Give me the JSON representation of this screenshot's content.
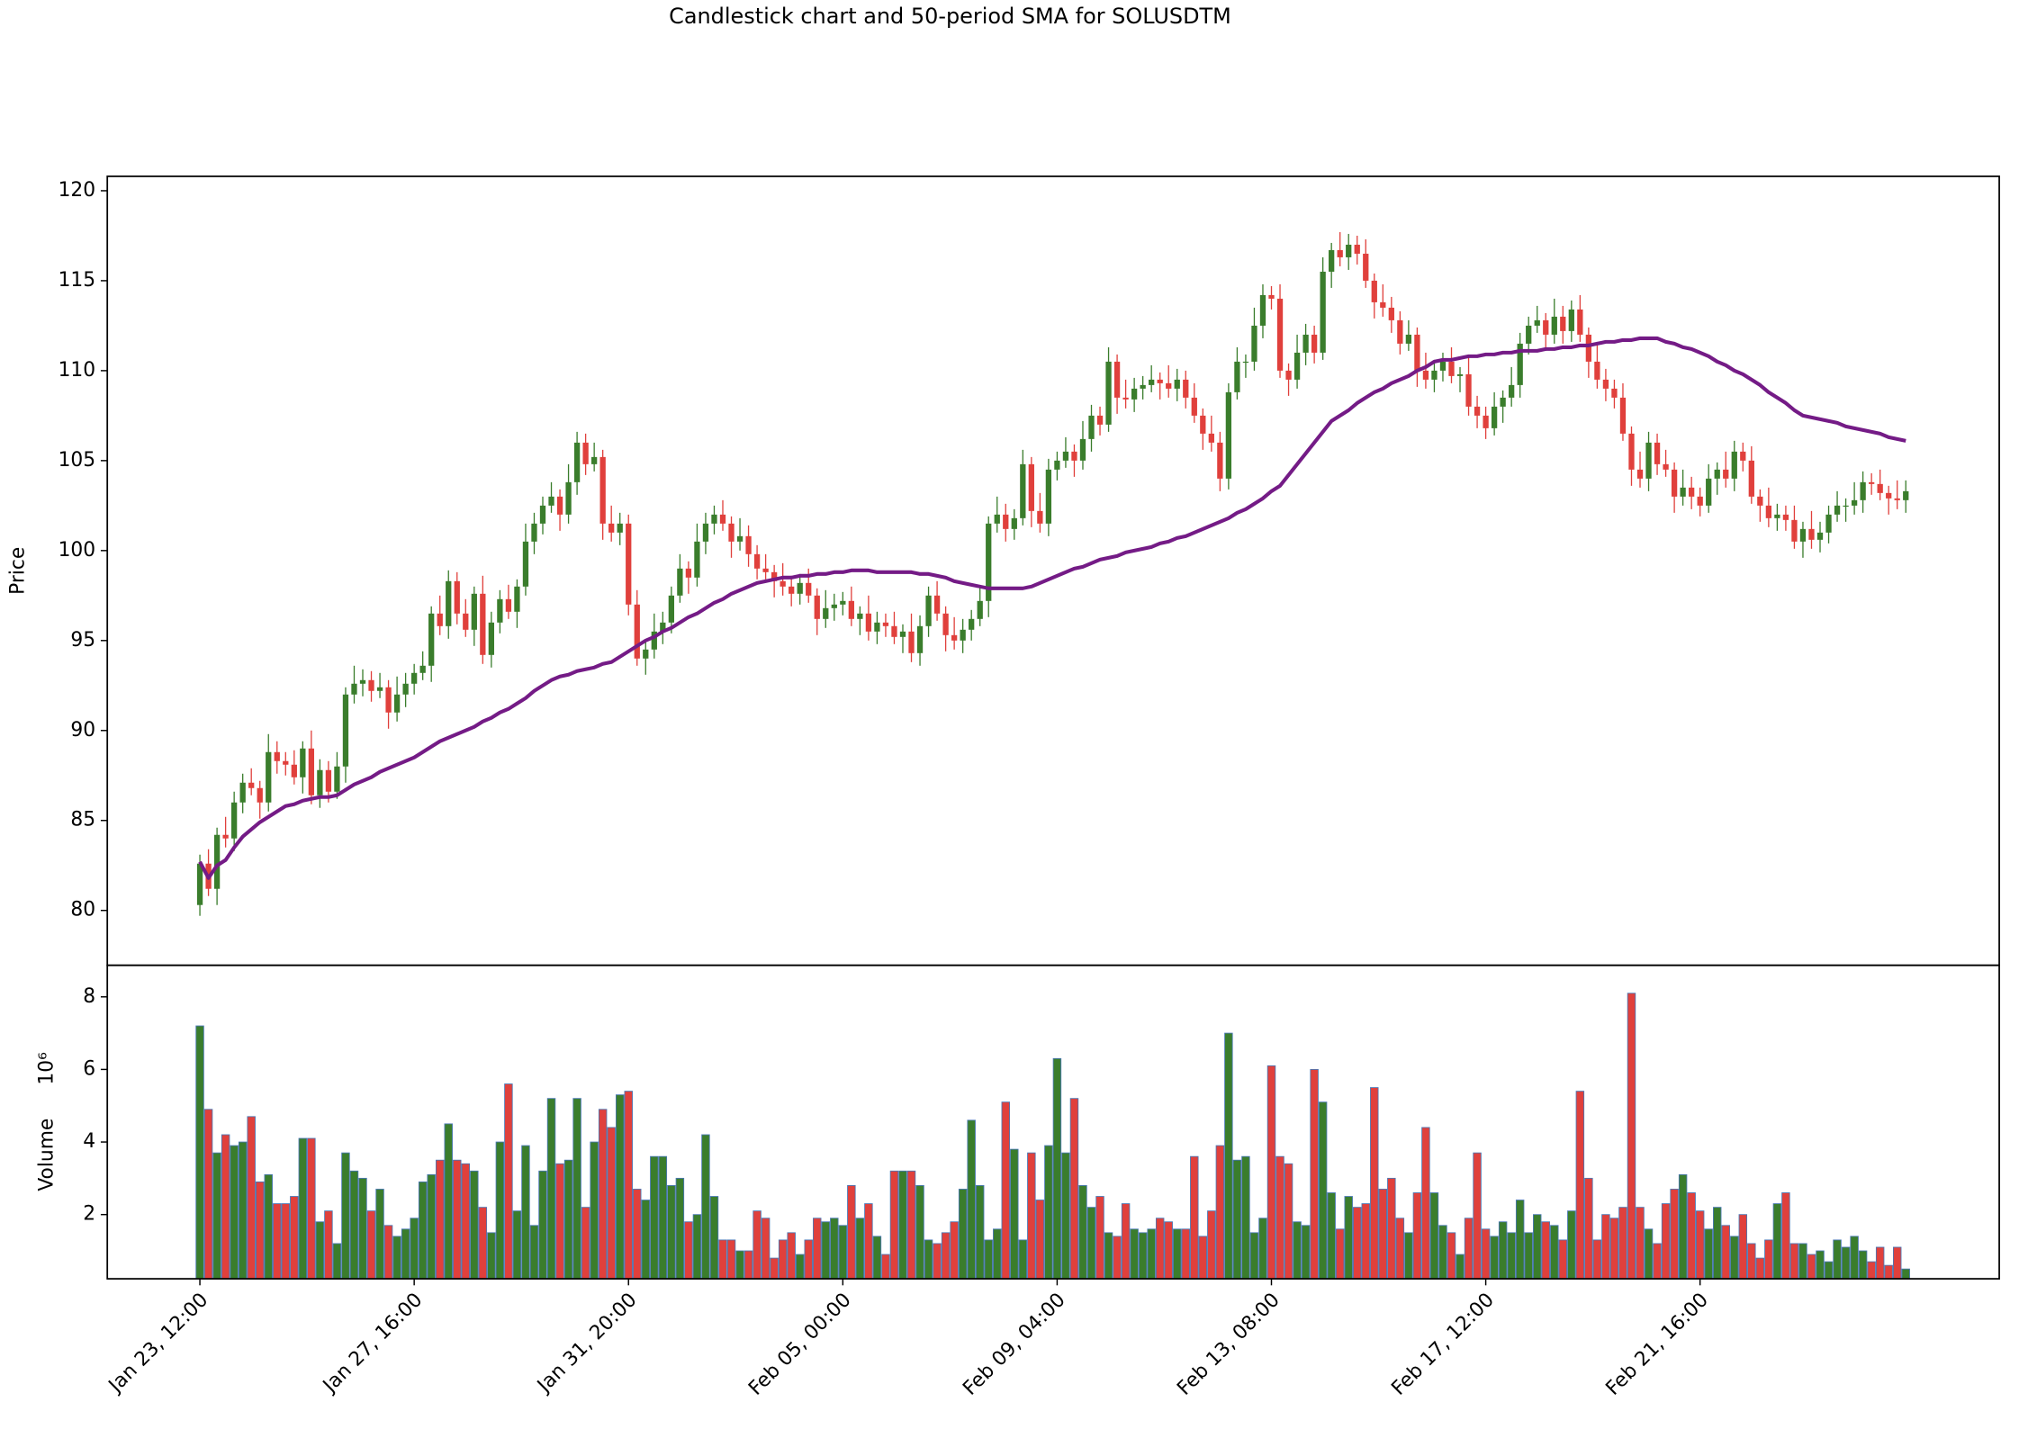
{
  "chart_data": {
    "type": "candlestick",
    "title": "Candlestick chart and 50-period SMA for SOLUSDTM",
    "ylabel": "Price",
    "up_color": "#3a7d2c",
    "down_color": "#e0403c",
    "edge_color": "#4a78b5",
    "xlim": [
      -10.8,
      209.9
    ],
    "xticks": [
      {
        "value": 0,
        "label": "Jan 23, 12:00"
      },
      {
        "value": 25,
        "label": "Jan 27, 16:00"
      },
      {
        "value": 50,
        "label": "Jan 31, 20:00"
      },
      {
        "value": 75,
        "label": "Feb 05, 00:00"
      },
      {
        "value": 100,
        "label": "Feb 09, 04:00"
      },
      {
        "value": 125,
        "label": "Feb 13, 08:00"
      },
      {
        "value": 150,
        "label": "Feb 17, 12:00"
      },
      {
        "value": 175,
        "label": "Feb 21, 16:00"
      }
    ],
    "ylim": [
      76.95,
      120.8
    ],
    "yticks": [
      80,
      85,
      90,
      95,
      100,
      105,
      110,
      115,
      120
    ],
    "open": [
      80.3,
      82.6,
      81.2,
      84.2,
      84.0,
      86.0,
      87.1,
      86.8,
      86.0,
      88.8,
      88.3,
      88.1,
      87.4,
      89.0,
      86.4,
      87.8,
      86.6,
      88.0,
      92.0,
      92.6,
      92.8,
      92.2,
      92.4,
      91.0,
      92.0,
      92.6,
      93.2,
      93.6,
      96.5,
      95.8,
      98.3,
      96.5,
      95.6,
      97.6,
      94.2,
      96.0,
      97.3,
      96.6,
      98.0,
      100.5,
      101.5,
      102.5,
      103.0,
      102.0,
      103.8,
      106.0,
      104.8,
      105.2,
      101.5,
      101.0,
      101.5,
      97.0,
      94.0,
      94.5,
      95.5,
      96.0,
      97.5,
      99.0,
      98.5,
      100.5,
      101.5,
      102.0,
      101.5,
      100.5,
      100.8,
      99.8,
      99.0,
      98.8,
      98.3,
      98.0,
      97.6,
      98.2,
      97.5,
      96.2,
      96.8,
      97.0,
      97.2,
      96.2,
      96.5,
      95.5,
      96.0,
      95.8,
      95.2,
      95.5,
      94.3,
      95.8,
      97.5,
      96.5,
      95.3,
      95.0,
      95.6,
      96.2,
      97.2,
      101.5,
      102.0,
      101.2,
      101.8,
      104.8,
      102.2,
      101.5,
      104.5,
      105.0,
      105.5,
      105.0,
      106.2,
      107.5,
      107.0,
      110.5,
      108.5,
      108.4,
      109.0,
      109.2,
      109.5,
      109.3,
      109.0,
      109.5,
      108.5,
      107.5,
      106.5,
      106.0,
      104.0,
      108.8,
      110.5,
      110.5,
      112.5,
      114.2,
      114.0,
      110.0,
      109.5,
      111.0,
      112.0,
      111.0,
      115.5,
      116.7,
      116.3,
      117.0,
      116.5,
      115.0,
      113.8,
      113.5,
      112.8,
      111.5,
      112.0,
      110.0,
      109.5,
      110.0,
      110.5,
      109.7,
      109.8,
      108.0,
      107.5,
      106.8,
      108.0,
      108.5,
      109.2,
      111.5,
      112.5,
      112.8,
      112.0,
      113.0,
      112.2,
      113.4,
      112.0,
      110.5,
      109.5,
      109.0,
      108.5,
      106.5,
      104.5,
      104.0,
      106.0,
      104.8,
      104.5,
      103.0,
      103.5,
      103.0,
      102.5,
      104.0,
      104.5,
      104.0,
      105.5,
      105.0,
      103.0,
      102.5,
      101.8,
      102.0,
      101.7,
      100.5,
      101.2,
      100.6,
      101.0,
      102.0,
      102.5,
      102.5,
      102.8,
      103.8,
      103.7,
      103.2,
      102.9,
      102.8
    ],
    "high": [
      83.1,
      83.4,
      84.6,
      85.2,
      86.6,
      87.6,
      87.9,
      87.2,
      89.8,
      89.4,
      88.8,
      88.9,
      89.4,
      90.0,
      88.4,
      88.3,
      88.8,
      92.4,
      93.6,
      93.4,
      93.3,
      93.2,
      92.8,
      93.0,
      93.2,
      93.7,
      94.4,
      96.9,
      97.5,
      98.9,
      98.8,
      97.3,
      98.0,
      98.6,
      96.6,
      97.8,
      98.1,
      98.4,
      101.5,
      102.1,
      103.0,
      103.8,
      103.4,
      104.8,
      106.6,
      106.5,
      106.0,
      105.6,
      102.5,
      102.1,
      102.0,
      97.8,
      94.9,
      96.5,
      96.6,
      98.0,
      99.8,
      99.4,
      101.5,
      102.1,
      102.5,
      102.8,
      101.9,
      101.8,
      101.4,
      100.3,
      99.8,
      99.2,
      99.3,
      98.6,
      98.7,
      99.0,
      97.9,
      97.8,
      97.6,
      97.7,
      98.0,
      96.9,
      97.5,
      96.6,
      96.5,
      96.6,
      95.9,
      96.5,
      96.4,
      98.0,
      98.3,
      96.9,
      96.3,
      96.2,
      96.7,
      98.0,
      101.9,
      103.0,
      102.6,
      102.3,
      105.6,
      105.2,
      103.2,
      105.1,
      105.5,
      106.3,
      105.9,
      107.2,
      108.1,
      108.0,
      111.3,
      110.9,
      109.5,
      109.6,
      109.7,
      110.3,
      109.9,
      110.3,
      110.1,
      110.0,
      109.3,
      107.9,
      107.5,
      106.6,
      109.3,
      111.3,
      110.9,
      113.5,
      114.8,
      114.7,
      114.8,
      110.4,
      112.0,
      112.6,
      112.5,
      116.3,
      117.1,
      117.7,
      117.6,
      117.5,
      117.3,
      115.4,
      114.8,
      114.1,
      113.3,
      112.8,
      112.4,
      111.0,
      110.6,
      111.0,
      111.3,
      110.2,
      110.8,
      108.6,
      108.0,
      108.8,
      108.9,
      110.2,
      112.1,
      113.0,
      113.6,
      113.2,
      114.0,
      113.6,
      113.9,
      114.2,
      112.4,
      111.5,
      110.1,
      109.5,
      109.3,
      106.9,
      105.5,
      106.6,
      106.5,
      105.6,
      104.9,
      104.5,
      104.1,
      103.5,
      104.8,
      104.9,
      105.5,
      106.1,
      106.0,
      105.8,
      103.4,
      103.5,
      102.6,
      102.5,
      102.5,
      101.6,
      102.2,
      101.6,
      102.5,
      103.3,
      102.9,
      103.8,
      104.4,
      104.3,
      104.5,
      103.6,
      103.9,
      103.9
    ],
    "low": [
      79.7,
      80.8,
      80.3,
      83.5,
      83.3,
      85.4,
      86.4,
      85.1,
      85.5,
      87.6,
      87.5,
      87.0,
      86.5,
      85.9,
      85.7,
      86.0,
      86.2,
      87.1,
      91.5,
      91.9,
      91.6,
      91.8,
      90.1,
      90.5,
      91.3,
      92.0,
      92.8,
      92.7,
      95.3,
      95.1,
      95.9,
      95.2,
      94.7,
      93.7,
      93.5,
      95.4,
      96.2,
      95.7,
      97.5,
      99.8,
      100.9,
      102.1,
      101.1,
      101.5,
      103.1,
      104.2,
      104.4,
      100.6,
      100.5,
      100.3,
      96.4,
      93.6,
      93.1,
      94.0,
      94.8,
      95.4,
      97.1,
      97.6,
      98.0,
      99.8,
      100.9,
      101.1,
      99.6,
      100.0,
      99.1,
      98.4,
      98.4,
      97.4,
      97.5,
      96.9,
      97.0,
      97.1,
      95.3,
      95.7,
      96.1,
      96.4,
      95.8,
      95.3,
      95.0,
      94.8,
      95.2,
      94.8,
      94.3,
      93.8,
      93.6,
      95.2,
      96.1,
      94.4,
      94.5,
      94.3,
      95.0,
      95.8,
      96.3,
      101.0,
      100.5,
      100.6,
      101.4,
      101.3,
      101.0,
      100.8,
      103.9,
      104.6,
      104.1,
      104.5,
      105.5,
      106.4,
      106.6,
      107.6,
      107.9,
      107.7,
      108.4,
      108.8,
      108.4,
      108.5,
      108.3,
      107.9,
      107.1,
      105.6,
      105.5,
      103.3,
      103.4,
      108.4,
      109.6,
      110.0,
      111.8,
      113.4,
      109.6,
      108.6,
      109.0,
      110.3,
      110.4,
      110.6,
      114.6,
      115.8,
      115.6,
      115.9,
      114.6,
      112.9,
      113.0,
      112.1,
      110.9,
      111.1,
      109.1,
      109.0,
      108.8,
      109.4,
      109.3,
      108.8,
      107.5,
      106.8,
      106.2,
      106.4,
      107.1,
      108.0,
      108.5,
      110.9,
      112.1,
      111.1,
      111.5,
      111.5,
      111.6,
      111.6,
      109.6,
      109.0,
      108.3,
      107.9,
      106.1,
      103.6,
      103.5,
      103.3,
      104.2,
      104.1,
      102.1,
      102.5,
      102.3,
      101.9,
      102.1,
      103.1,
      103.5,
      103.3,
      104.4,
      102.6,
      101.6,
      101.3,
      101.1,
      101.1,
      100.1,
      99.6,
      100.1,
      99.9,
      100.4,
      101.6,
      101.6,
      102.0,
      102.1,
      103.1,
      102.8,
      102.0,
      102.3,
      102.1
    ],
    "close": [
      82.6,
      81.2,
      84.2,
      84.0,
      86.0,
      87.1,
      86.8,
      86.0,
      88.8,
      88.3,
      88.1,
      87.4,
      89.0,
      86.4,
      87.8,
      86.6,
      88.0,
      92.0,
      92.6,
      92.8,
      92.2,
      92.4,
      91.0,
      92.0,
      92.6,
      93.2,
      93.6,
      96.5,
      95.8,
      98.3,
      96.5,
      95.6,
      97.6,
      94.2,
      96.0,
      97.3,
      96.6,
      98.0,
      100.5,
      101.5,
      102.5,
      103.0,
      102.0,
      103.8,
      106.0,
      104.8,
      105.2,
      101.5,
      101.0,
      101.5,
      97.0,
      94.0,
      94.5,
      95.5,
      96.0,
      97.5,
      99.0,
      98.5,
      100.5,
      101.5,
      102.0,
      101.5,
      100.5,
      100.8,
      99.8,
      99.0,
      98.8,
      98.3,
      98.0,
      97.6,
      98.2,
      97.5,
      96.2,
      96.8,
      97.0,
      97.2,
      96.2,
      96.5,
      95.5,
      96.0,
      95.8,
      95.2,
      95.5,
      94.3,
      95.8,
      97.5,
      96.5,
      95.3,
      95.0,
      95.6,
      96.2,
      97.2,
      101.5,
      102.0,
      101.2,
      101.8,
      104.8,
      102.2,
      101.5,
      104.5,
      105.0,
      105.5,
      105.0,
      106.2,
      107.5,
      107.0,
      110.5,
      108.5,
      108.4,
      109.0,
      109.2,
      109.5,
      109.3,
      109.0,
      109.5,
      108.5,
      107.5,
      106.5,
      106.0,
      104.0,
      108.8,
      110.5,
      110.5,
      112.5,
      114.2,
      114.0,
      110.0,
      109.5,
      111.0,
      112.0,
      111.0,
      115.5,
      116.7,
      116.3,
      117.0,
      116.5,
      115.0,
      113.8,
      113.5,
      112.8,
      111.5,
      112.0,
      110.0,
      109.5,
      110.0,
      110.5,
      109.7,
      109.8,
      108.0,
      107.5,
      106.8,
      108.0,
      108.5,
      109.2,
      111.5,
      112.5,
      112.8,
      112.0,
      113.0,
      112.2,
      113.4,
      112.0,
      110.5,
      109.5,
      109.0,
      108.5,
      106.5,
      104.5,
      104.0,
      106.0,
      104.8,
      104.5,
      103.0,
      103.5,
      103.0,
      102.5,
      104.0,
      104.5,
      104.0,
      105.5,
      105.0,
      103.0,
      102.5,
      101.8,
      102.0,
      101.7,
      100.5,
      101.2,
      100.6,
      101.0,
      102.0,
      102.5,
      102.5,
      102.8,
      103.8,
      103.7,
      103.2,
      102.9,
      102.8,
      103.3
    ],
    "sma": {
      "color": "#741b86",
      "values": [
        82.7,
        81.8,
        82.5,
        82.8,
        83.5,
        84.1,
        84.5,
        84.9,
        85.2,
        85.5,
        85.8,
        85.9,
        86.1,
        86.2,
        86.3,
        86.3,
        86.4,
        86.7,
        87.0,
        87.2,
        87.4,
        87.7,
        87.9,
        88.1,
        88.3,
        88.5,
        88.8,
        89.1,
        89.4,
        89.6,
        89.8,
        90.0,
        90.2,
        90.5,
        90.7,
        91.0,
        91.2,
        91.5,
        91.8,
        92.2,
        92.5,
        92.8,
        93.0,
        93.1,
        93.3,
        93.4,
        93.5,
        93.7,
        93.8,
        94.1,
        94.4,
        94.7,
        95.0,
        95.2,
        95.5,
        95.7,
        96.0,
        96.3,
        96.5,
        96.8,
        97.1,
        97.3,
        97.6,
        97.8,
        98.0,
        98.2,
        98.3,
        98.4,
        98.5,
        98.5,
        98.6,
        98.6,
        98.7,
        98.7,
        98.8,
        98.8,
        98.9,
        98.9,
        98.9,
        98.8,
        98.8,
        98.8,
        98.8,
        98.8,
        98.7,
        98.7,
        98.6,
        98.5,
        98.3,
        98.2,
        98.1,
        98.0,
        97.9,
        97.9,
        97.9,
        97.9,
        97.9,
        98.0,
        98.2,
        98.4,
        98.6,
        98.8,
        99.0,
        99.1,
        99.3,
        99.5,
        99.6,
        99.7,
        99.9,
        100.0,
        100.1,
        100.2,
        100.4,
        100.5,
        100.7,
        100.8,
        101.0,
        101.2,
        101.4,
        101.6,
        101.8,
        102.1,
        102.3,
        102.6,
        102.9,
        103.3,
        103.6,
        104.2,
        104.8,
        105.4,
        106.0,
        106.6,
        107.2,
        107.5,
        107.8,
        108.2,
        108.5,
        108.8,
        109.0,
        109.3,
        109.5,
        109.7,
        110.0,
        110.2,
        110.5,
        110.6,
        110.6,
        110.7,
        110.8,
        110.8,
        110.9,
        110.9,
        111.0,
        111.0,
        111.1,
        111.1,
        111.1,
        111.2,
        111.2,
        111.3,
        111.3,
        111.4,
        111.4,
        111.5,
        111.6,
        111.6,
        111.7,
        111.7,
        111.8,
        111.8,
        111.8,
        111.6,
        111.5,
        111.3,
        111.2,
        111.0,
        110.8,
        110.5,
        110.3,
        110.0,
        109.8,
        109.5,
        109.2,
        108.8,
        108.5,
        108.2,
        107.8,
        107.5,
        107.4,
        107.3,
        107.2,
        107.1,
        106.9,
        106.8,
        106.7,
        106.6,
        106.5,
        106.3,
        106.2,
        106.1
      ]
    },
    "volume": {
      "ylabel": "Volume",
      "offset_label": "10⁶",
      "ylim": [
        0.23,
        8.87
      ],
      "yticks": [
        2,
        4,
        6,
        8
      ],
      "values": [
        7.2,
        4.9,
        3.7,
        4.2,
        3.9,
        4.0,
        4.7,
        2.9,
        3.1,
        2.3,
        2.3,
        2.5,
        4.1,
        4.1,
        1.8,
        2.1,
        1.2,
        3.7,
        3.2,
        3.0,
        2.1,
        2.7,
        1.7,
        1.4,
        1.6,
        1.9,
        2.9,
        3.1,
        3.5,
        4.5,
        3.5,
        3.4,
        3.2,
        2.2,
        1.5,
        4.0,
        5.6,
        2.1,
        3.9,
        1.7,
        3.2,
        5.2,
        3.4,
        3.5,
        5.2,
        2.2,
        4.0,
        4.9,
        4.4,
        5.3,
        5.4,
        2.7,
        2.4,
        3.6,
        3.6,
        2.8,
        3.0,
        1.8,
        2.0,
        4.2,
        2.5,
        1.3,
        1.3,
        1.0,
        1.0,
        2.1,
        1.9,
        0.8,
        1.3,
        1.5,
        0.9,
        1.3,
        1.9,
        1.8,
        1.9,
        1.7,
        2.8,
        1.9,
        2.3,
        1.4,
        0.9,
        3.2,
        3.2,
        3.2,
        2.8,
        1.3,
        1.2,
        1.5,
        1.8,
        2.7,
        4.6,
        2.8,
        1.3,
        1.6,
        5.1,
        3.8,
        1.3,
        3.7,
        2.4,
        3.9,
        6.3,
        3.7,
        5.2,
        2.8,
        2.2,
        2.5,
        1.5,
        1.4,
        2.3,
        1.6,
        1.5,
        1.6,
        1.9,
        1.8,
        1.6,
        1.6,
        3.6,
        1.4,
        2.1,
        3.9,
        7.0,
        3.5,
        3.6,
        1.5,
        1.9,
        6.1,
        3.6,
        3.4,
        1.8,
        1.7,
        6.0,
        5.1,
        2.6,
        1.6,
        2.5,
        2.2,
        2.3,
        5.5,
        2.7,
        3.0,
        1.9,
        1.5,
        2.6,
        4.4,
        2.6,
        1.7,
        1.5,
        0.9,
        1.9,
        3.7,
        1.6,
        1.4,
        1.8,
        1.5,
        2.4,
        1.5,
        2.0,
        1.8,
        1.7,
        1.3,
        2.1,
        5.4,
        3.0,
        1.3,
        2.0,
        1.9,
        2.2,
        8.1,
        2.2,
        1.6,
        1.2,
        2.3,
        2.7,
        3.1,
        2.6,
        2.1,
        1.6,
        2.2,
        1.7,
        1.4,
        2.0,
        1.2,
        0.8,
        1.3,
        2.3,
        2.6,
        1.2,
        1.2,
        0.9,
        1.0,
        0.7,
        1.3,
        1.1,
        1.4,
        1.0,
        0.7,
        1.1,
        0.6,
        1.1,
        0.5
      ]
    }
  }
}
